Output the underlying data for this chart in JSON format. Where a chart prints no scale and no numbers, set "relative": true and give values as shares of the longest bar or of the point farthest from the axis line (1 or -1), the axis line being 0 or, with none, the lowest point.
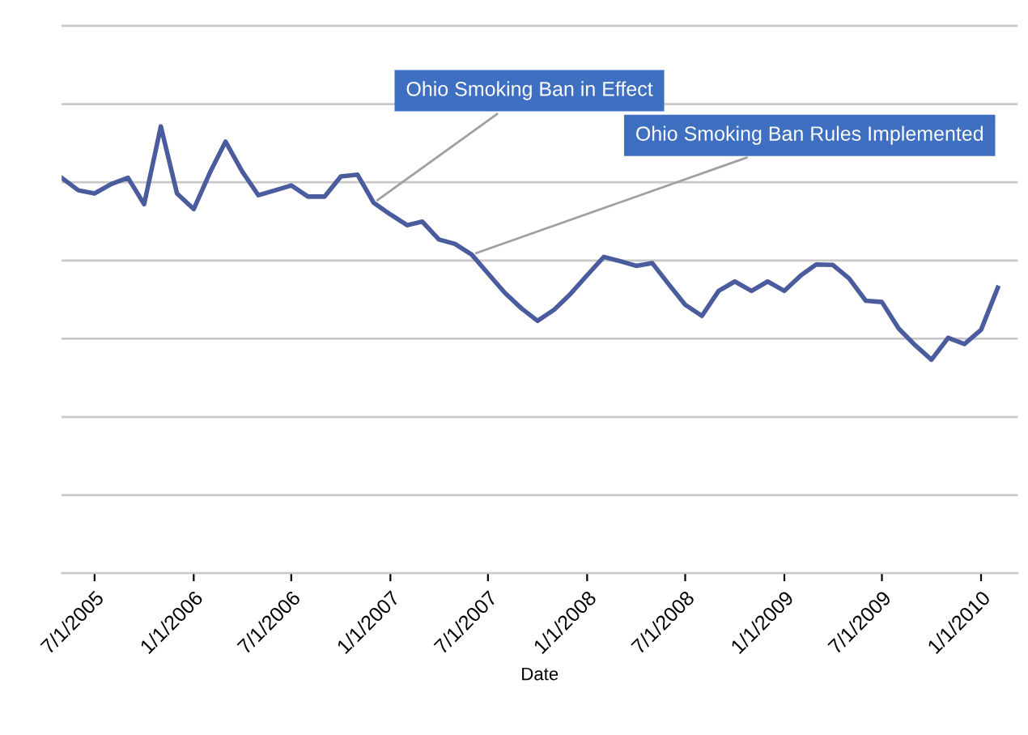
{
  "chart_data": {
    "type": "line",
    "relative": true,
    "xlabel": "Date",
    "x": [
      "2005-05-01",
      "2005-06-01",
      "2005-07-01",
      "2005-08-01",
      "2005-09-01",
      "2005-10-01",
      "2005-11-01",
      "2005-12-01",
      "2006-01-01",
      "2006-02-01",
      "2006-03-01",
      "2006-04-01",
      "2006-05-01",
      "2006-06-01",
      "2006-07-01",
      "2006-08-01",
      "2006-09-01",
      "2006-10-01",
      "2006-11-01",
      "2006-12-01",
      "2007-01-01",
      "2007-02-01",
      "2007-03-01",
      "2007-04-01",
      "2007-05-01",
      "2007-06-01",
      "2007-07-01",
      "2007-08-01",
      "2007-09-01",
      "2007-10-01",
      "2007-11-01",
      "2007-12-01",
      "2008-01-01",
      "2008-02-01",
      "2008-03-01",
      "2008-04-01",
      "2008-05-01",
      "2008-06-01",
      "2008-07-01",
      "2008-08-01",
      "2008-09-01",
      "2008-10-01",
      "2008-11-01",
      "2008-12-01",
      "2009-01-01",
      "2009-02-01",
      "2009-03-01",
      "2009-04-01",
      "2009-05-01",
      "2009-06-01",
      "2009-07-01",
      "2009-08-01",
      "2009-09-01",
      "2009-10-01",
      "2009-11-01",
      "2009-12-01",
      "2010-01-01",
      "2010-02-01"
    ],
    "series": [
      {
        "color": "#4a5c9e",
        "values": [
          0.885,
          0.857,
          0.85,
          0.871,
          0.885,
          0.826,
          1.0,
          0.85,
          0.815,
          0.899,
          0.966,
          0.899,
          0.846,
          0.857,
          0.868,
          0.843,
          0.843,
          0.888,
          0.892,
          0.829,
          0.803,
          0.779,
          0.787,
          0.747,
          0.737,
          0.713,
          0.671,
          0.628,
          0.593,
          0.565,
          0.59,
          0.625,
          0.667,
          0.708,
          0.699,
          0.688,
          0.694,
          0.646,
          0.601,
          0.576,
          0.632,
          0.653,
          0.632,
          0.653,
          0.632,
          0.667,
          0.691,
          0.69,
          0.66,
          0.61,
          0.607,
          0.548,
          0.51,
          0.478,
          0.527,
          0.513,
          0.545,
          0.639
        ]
      }
    ],
    "xlim": [
      "2005-05-01",
      "2010-03-10"
    ],
    "xticks": [
      {
        "value": "2005-07-01",
        "label": "7/1/2005"
      },
      {
        "value": "2006-01-01",
        "label": "1/1/2006"
      },
      {
        "value": "2006-07-01",
        "label": "7/1/2006"
      },
      {
        "value": "2007-01-01",
        "label": "1/1/2007"
      },
      {
        "value": "2007-07-01",
        "label": "7/1/2007"
      },
      {
        "value": "2008-01-01",
        "label": "1/1/2008"
      },
      {
        "value": "2008-07-01",
        "label": "7/1/2008"
      },
      {
        "value": "2009-01-01",
        "label": "1/1/2009"
      },
      {
        "value": "2009-07-01",
        "label": "7/1/2009"
      },
      {
        "value": "2010-01-01",
        "label": "1/1/2010"
      }
    ],
    "annotations": [
      {
        "text": "Ohio Smoking Ban in Effect",
        "x": "2006-12-01",
        "y": 0.829
      },
      {
        "text": "Ohio Smoking Ban Rules Implemented",
        "x": "2007-06-01",
        "y": 0.713
      }
    ],
    "grid": "y",
    "tick_labels": "x",
    "legend": false,
    "marker": "none",
    "line_style": "solid"
  }
}
